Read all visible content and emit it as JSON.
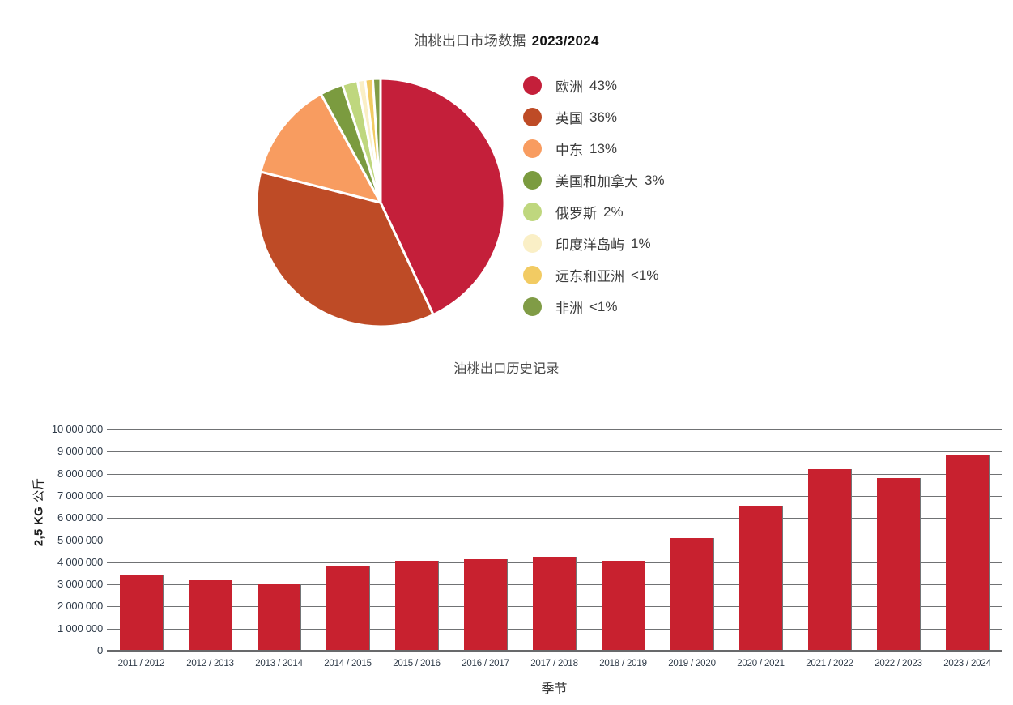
{
  "page": {
    "background": "#ffffff"
  },
  "chart_data": [
    {
      "type": "pie",
      "title": "油桃出口市场数据 2023/2024",
      "title_regular": "油桃出口市场数据",
      "title_bold": "2023/2024",
      "legend_position": "right",
      "start_angle_deg": 0,
      "direction": "clockwise",
      "stroke_color": "#ffffff",
      "slices": [
        {
          "label": "欧洲",
          "display": "43%",
          "value": 43,
          "color": "#C41F3A"
        },
        {
          "label": "英国",
          "display": "36%",
          "value": 36,
          "color": "#BE4B26"
        },
        {
          "label": "中东",
          "display": "13%",
          "value": 13,
          "color": "#F89C60"
        },
        {
          "label": "美国和加拿大",
          "display": "3%",
          "value": 3,
          "color": "#7B9B3F"
        },
        {
          "label": "俄罗斯",
          "display": "2%",
          "value": 2,
          "color": "#BFD77E"
        },
        {
          "label": "印度洋岛屿",
          "display": "1%",
          "value": 1,
          "color": "#FAEFC6"
        },
        {
          "label": "远东和亚洲",
          "display": "<1%",
          "value": 1,
          "color": "#F2CB63"
        },
        {
          "label": "非洲",
          "display": "<1%",
          "value": 1,
          "color": "#809C46"
        }
      ]
    },
    {
      "type": "bar",
      "title": "油桃出口历史记录",
      "xlabel": "季节",
      "ylabel_bold": "2,5 KG",
      "ylabel_regular": "公斤",
      "ylim": [
        0,
        10000000
      ],
      "ytick_step": 1000000,
      "ytick_labels": [
        "0",
        "1 000 000",
        "2 000 000",
        "3 000 000",
        "4 000 000",
        "5 000 000",
        "6 000 000",
        "7 000 000",
        "8 000 000",
        "9 000 000",
        "10 000 000"
      ],
      "categories": [
        "2011 / 2012",
        "2012 / 2013",
        "2013 / 2014",
        "2014 / 2015",
        "2015 / 2016",
        "2016 / 2017",
        "2017 / 2018",
        "2018 / 2019",
        "2019 / 2020",
        "2020 / 2021",
        "2021 / 2022",
        "2022 / 2023",
        "2023 / 2024"
      ],
      "values": [
        3450000,
        3200000,
        3000000,
        3800000,
        4050000,
        4150000,
        4250000,
        4050000,
        5100000,
        6550000,
        8200000,
        7800000,
        8850000
      ],
      "bar_color": "#C8212F",
      "grid_color": "#707274",
      "grid": true,
      "legend_position": "none"
    }
  ]
}
